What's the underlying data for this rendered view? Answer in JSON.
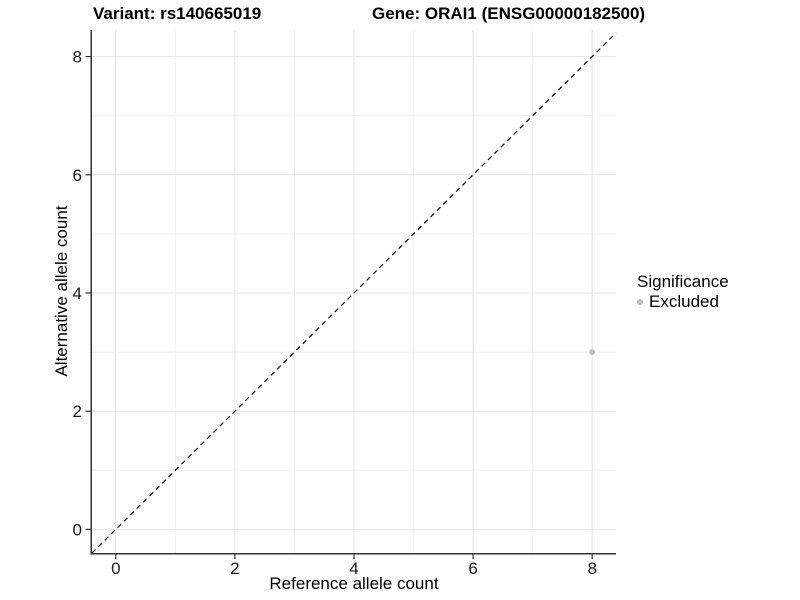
{
  "header": {
    "variant_title": "Variant: rs140665019",
    "gene_title": "Gene: ORAI1 (ENSG00000182500)"
  },
  "axes": {
    "x_label": "Reference allele count",
    "y_label": "Alternative allele count"
  },
  "legend": {
    "title": "Significance",
    "items": [
      {
        "label": "Excluded",
        "color": "#bdbdbd"
      }
    ]
  },
  "chart_data": {
    "type": "scatter",
    "title": "Variant: rs140665019   Gene: ORAI1 (ENSG00000182500)",
    "xlabel": "Reference allele count",
    "ylabel": "Alternative allele count",
    "xlim": [
      -0.4,
      8.4
    ],
    "ylim": [
      -0.4,
      8.45
    ],
    "x_major_ticks": [
      0,
      2,
      4,
      6,
      8
    ],
    "y_major_ticks": [
      0,
      2,
      4,
      6,
      8
    ],
    "x_minor_ticks": [
      1,
      3,
      5,
      7
    ],
    "y_minor_ticks": [
      1,
      3,
      5,
      7
    ],
    "grid": true,
    "legend_position": "right",
    "series": [
      {
        "name": "Excluded",
        "color": "#bdbdbd",
        "points": [
          {
            "x": 8,
            "y": 3
          }
        ]
      }
    ],
    "reference_line": {
      "type": "identity",
      "equation": "y = x",
      "style": "dashed",
      "color": "#000000"
    },
    "colors": {
      "background": "#ffffff",
      "grid_major": "#e4e4e4",
      "grid_minor": "#f1f1f1",
      "axis": "#333333",
      "tick_label": "#1a1a1a"
    }
  }
}
